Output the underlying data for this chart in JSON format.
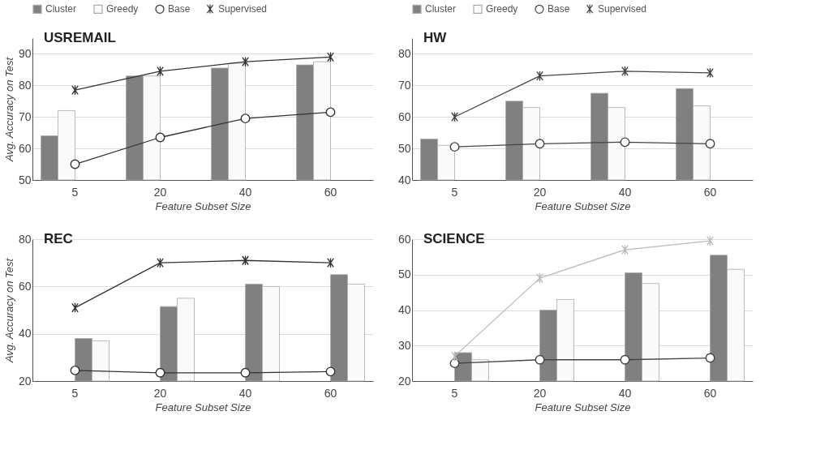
{
  "chart_data": [
    {
      "type": "bar",
      "title": "USREMAIL",
      "xlabel": "Feature Subset Size",
      "ylabel": "Avg. Accuracy on Test",
      "categories": [
        "5",
        "20",
        "40",
        "60"
      ],
      "ylim": [
        50,
        95
      ],
      "yticks": [
        50,
        60,
        70,
        80,
        90
      ],
      "grid": "y",
      "legend": "top",
      "series": [
        {
          "name": "Cluster",
          "type": "bar",
          "color": "#808080",
          "values": [
            64,
            83,
            85.5,
            86.5
          ]
        },
        {
          "name": "Greedy",
          "type": "bar",
          "color": "#fafafa",
          "values": [
            72,
            83,
            87,
            87.5
          ]
        },
        {
          "name": "Base",
          "type": "line",
          "marker": "circle",
          "color": "#333333",
          "values": [
            55,
            63.5,
            69.5,
            71.5
          ]
        },
        {
          "name": "Supervised",
          "type": "line",
          "marker": "cross",
          "color": "#333333",
          "values": [
            78.5,
            84.5,
            87.5,
            89
          ]
        }
      ]
    },
    {
      "type": "bar",
      "title": "HW",
      "xlabel": "Feature Subset Size",
      "categories": [
        "5",
        "20",
        "40",
        "60"
      ],
      "ylim": [
        40,
        85
      ],
      "yticks": [
        40,
        50,
        60,
        70,
        80
      ],
      "grid": "y",
      "legend": "top",
      "series": [
        {
          "name": "Cluster",
          "type": "bar",
          "color": "#808080",
          "values": [
            53,
            65,
            67.5,
            69
          ]
        },
        {
          "name": "Greedy",
          "type": "bar",
          "color": "#fafafa",
          "values": [
            51,
            63,
            63,
            63.5
          ]
        },
        {
          "name": "Base",
          "type": "line",
          "marker": "circle",
          "color": "#444444",
          "values": [
            50.5,
            51.5,
            52,
            51.5
          ]
        },
        {
          "name": "Supervised",
          "type": "line",
          "marker": "cross",
          "color": "#444444",
          "values": [
            60,
            73,
            74.5,
            74
          ]
        }
      ]
    },
    {
      "type": "bar",
      "title": "REC",
      "xlabel": "Feature Subset Size",
      "ylabel": "Avg. Accuracy on Test",
      "categories": [
        "5",
        "20",
        "40",
        "60"
      ],
      "ylim": [
        20,
        80
      ],
      "yticks": [
        20,
        40,
        60,
        80
      ],
      "grid": "y",
      "series": [
        {
          "type": "bar",
          "color": "#808080",
          "values": [
            38,
            51.5,
            61,
            65
          ]
        },
        {
          "type": "bar",
          "color": "#fafafa",
          "values": [
            37,
            55,
            60,
            61
          ]
        },
        {
          "type": "line",
          "marker": "circle",
          "color": "#333333",
          "values": [
            24.5,
            23.5,
            23.5,
            24
          ]
        },
        {
          "type": "line",
          "marker": "cross",
          "color": "#333333",
          "values": [
            51,
            70,
            71,
            70
          ]
        }
      ]
    },
    {
      "type": "bar",
      "title": "SCIENCE",
      "xlabel": "Feature Subset Size",
      "categories": [
        "5",
        "20",
        "40",
        "60"
      ],
      "ylim": [
        20,
        60
      ],
      "yticks": [
        20,
        30,
        40,
        50,
        60
      ],
      "grid": "y",
      "series": [
        {
          "type": "bar",
          "color": "#808080",
          "values": [
            28,
            40,
            50.5,
            55.5
          ]
        },
        {
          "type": "bar",
          "color": "#fafafa",
          "values": [
            26,
            43,
            47.5,
            51.5
          ]
        },
        {
          "type": "line",
          "marker": "circle",
          "color": "#444444",
          "values": [
            25,
            26,
            26,
            26.5
          ]
        },
        {
          "type": "line",
          "marker": "cross",
          "color": "#bbbbbb",
          "values": [
            27,
            49,
            57,
            59.5
          ]
        }
      ]
    }
  ]
}
